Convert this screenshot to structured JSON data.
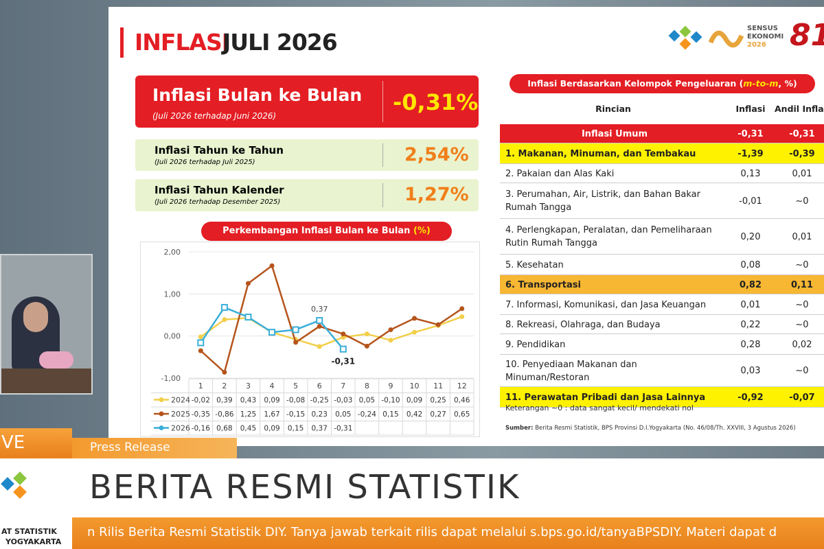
{
  "slide": {
    "title": [
      "INFLASI",
      "JULI 2026"
    ],
    "logo_text": [
      "SENSUS",
      "EKONOMI",
      "2026"
    ],
    "anniversary": "81",
    "mtm": {
      "label": "Inflasi Bulan ke Bulan",
      "sub": "(Juli 2026 terhadap Juni 2026)",
      "value": "-0,31%"
    },
    "yoy": {
      "label": "Inflasi Tahun ke Tahun",
      "sub": "(Juli 2026 terhadap Juli 2025)",
      "value": "2,54%"
    },
    "ytd": {
      "label": "Inflasi Tahun Kalender",
      "sub": "(Juli 2026 terhadap Desember 2025)",
      "value": "1,27%"
    },
    "table": {
      "title": [
        "Inflasi Berdasarkan Kelompok Pengeluaran (",
        "m-to-m",
        ", %)"
      ],
      "columns": [
        "Rincian",
        "Inflasi",
        "Andil Inflasi"
      ],
      "rows": [
        [
          "Inflasi Umum",
          "-0,31",
          "-0,31"
        ],
        [
          "1. Makanan, Minuman, dan Tembakau",
          "-1,39",
          "-0,39"
        ],
        [
          "2. Pakaian dan Alas Kaki",
          "0,13",
          "0,01"
        ],
        [
          "3. Perumahan, Air, Listrik, dan Bahan Bakar Rumah Tangga",
          "-0,01",
          "~0"
        ],
        [
          "4. Perlengkapan, Peralatan, dan Pemeliharaan Rutin Rumah Tangga",
          "0,20",
          "0,01"
        ],
        [
          "5. Kesehatan",
          "0,08",
          "~0"
        ],
        [
          "6. Transportasi",
          "0,82",
          "0,11"
        ],
        [
          "7. Informasi, Komunikasi, dan Jasa Keuangan",
          "0,01",
          "~0"
        ],
        [
          "8. Rekreasi, Olahraga, dan Budaya",
          "0,22",
          "~0"
        ],
        [
          "9. Pendidikan",
          "0,28",
          "0,02"
        ],
        [
          "10. Penyediaan Makanan dan Minuman/Restoran",
          "0,03",
          "~0"
        ],
        [
          "11. Perawatan Pribadi dan Jasa Lainnya",
          "-0,92",
          "-0,07"
        ]
      ],
      "note": "Keterangan ~0 : data sangat kecil/ mendekati nol",
      "source_label": "Sumber:",
      "source": "Berita Resmi Statistik, BPS Provinsi D.I.Yogyakarta (No. 46/08/Th. XXVIII, 3 Agustus 2026)"
    }
  },
  "chart": {
    "type": "line",
    "title": "Perkembangan Inflasi Bulan ke Bulan",
    "title_unit": "(%)",
    "categories": [
      "1",
      "2",
      "3",
      "4",
      "5",
      "6",
      "7",
      "8",
      "9",
      "10",
      "11",
      "12"
    ],
    "ylim": [
      -1,
      2
    ],
    "yticks": [
      {
        "value": 2,
        "label": "2,00"
      },
      {
        "value": 1,
        "label": "1,00"
      },
      {
        "value": 0,
        "label": "0,00"
      },
      {
        "value": -1,
        "label": "-1,00"
      }
    ],
    "series": [
      {
        "name": "2024",
        "color": "#f2cf4a",
        "values": [
          -0.02,
          0.39,
          0.43,
          0.09,
          -0.08,
          -0.25,
          -0.03,
          0.05,
          -0.1,
          0.09,
          0.25,
          0.46
        ],
        "value_labels": [
          "-0,02",
          "0,39",
          "0,43",
          "0,09",
          "-0,08",
          "-0,25",
          "-0,03",
          "0,05",
          "-0,10",
          "0,09",
          "0,25",
          "0,46"
        ]
      },
      {
        "name": "2025",
        "color": "#b5541b",
        "values": [
          -0.35,
          -0.86,
          1.25,
          1.67,
          -0.15,
          0.23,
          0.05,
          -0.24,
          0.15,
          0.42,
          0.27,
          0.65
        ],
        "value_labels": [
          "-0,35",
          "-0,86",
          "1,25",
          "1,67",
          "-0,15",
          "0,23",
          "0,05",
          "-0,24",
          "0,15",
          "0,42",
          "0,27",
          "0,65"
        ]
      },
      {
        "name": "2026",
        "color": "#3aaed8",
        "values": [
          -0.16,
          0.68,
          0.45,
          0.09,
          0.15,
          0.37,
          -0.31,
          null,
          null,
          null,
          null,
          null
        ],
        "value_labels": [
          "-0,16",
          "0,68",
          "0,45",
          "0,09",
          "0,15",
          "0,37",
          "-0,31",
          null,
          null,
          null,
          null,
          null
        ]
      }
    ]
  },
  "broadcast": {
    "live": "VE",
    "tab": "Press Release",
    "headline": "BERITA RESMI STATISTIK",
    "org": [
      "AT STATISTIK",
      "YOGYAKARTA"
    ],
    "ticker": "n Rilis Berita Resmi Statistik DIY. Tanya jawab terkait rilis dapat melalui s.bps.go.id/tanyaBPSDIY. Materi dapat d"
  }
}
